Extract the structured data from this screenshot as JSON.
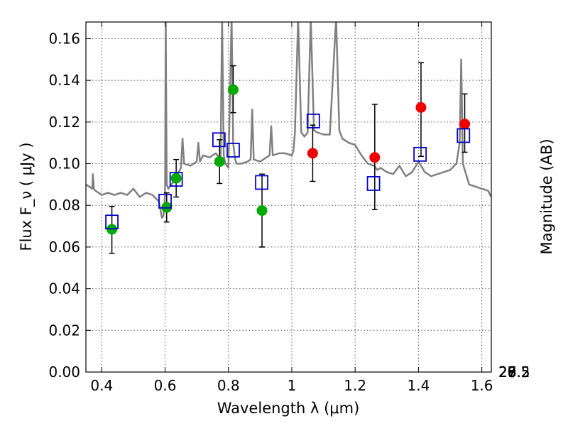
{
  "chart_data": {
    "type": "scatter",
    "xlabel": "Wavelength  λ (μm)",
    "ylabel": "Flux  F_ν  ( μJy )",
    "ylabel_right": "Magnitude (AB)",
    "xlim": [
      0.35,
      1.63
    ],
    "ylim": [
      0.0,
      0.168
    ],
    "grid": true,
    "x_ticks": [
      0.4,
      0.6,
      0.8,
      1.0,
      1.2,
      1.4,
      1.6
    ],
    "x_tick_labels": [
      "0.4",
      "0.6",
      "0.8",
      "1",
      "1.2",
      "1.4",
      "1.6"
    ],
    "y_ticks": [
      0.0,
      0.02,
      0.04,
      0.06,
      0.08,
      0.1,
      0.12,
      0.14,
      0.16
    ],
    "y_tick_labels": [
      "0.00",
      "0.02",
      "0.04",
      "0.06",
      "0.08",
      "0.10",
      "0.12",
      "0.14",
      "0.16"
    ],
    "right_ticks": [
      {
        "label": "26",
        "mag": 26.0
      },
      {
        "label": "26.2",
        "mag": 26.2
      },
      {
        "label": "26.5",
        "mag": 26.5
      },
      {
        "label": "27",
        "mag": 27.0
      },
      {
        "label": "27.5",
        "mag": 27.5
      },
      {
        "label": "28",
        "mag": 28.0
      },
      {
        "label": "29",
        "mag": 29.0
      }
    ],
    "series": [
      {
        "name": "",
        "kind": "line",
        "color": "#808080",
        "x": [
          0.35,
          0.36,
          0.37,
          0.372,
          0.375,
          0.38,
          0.39,
          0.4,
          0.42,
          0.44,
          0.46,
          0.48,
          0.5,
          0.52,
          0.54,
          0.56,
          0.58,
          0.59,
          0.595,
          0.6,
          0.602,
          0.605,
          0.61,
          0.62,
          0.63,
          0.64,
          0.65,
          0.655,
          0.66,
          0.68,
          0.7,
          0.705,
          0.71,
          0.72,
          0.74,
          0.76,
          0.77,
          0.775,
          0.78,
          0.785,
          0.79,
          0.8,
          0.81,
          0.815,
          0.82,
          0.825,
          0.83,
          0.84,
          0.86,
          0.87,
          0.875,
          0.88,
          0.9,
          0.92,
          0.93,
          0.935,
          0.94,
          0.96,
          0.98,
          1.0,
          1.005,
          1.01,
          1.02,
          1.03,
          1.04,
          1.05,
          1.06,
          1.07,
          1.08,
          1.1,
          1.12,
          1.14,
          1.15,
          1.16,
          1.18,
          1.2,
          1.22,
          1.24,
          1.26,
          1.27,
          1.28,
          1.3,
          1.32,
          1.34,
          1.36,
          1.38,
          1.4,
          1.42,
          1.44,
          1.46,
          1.48,
          1.5,
          1.52,
          1.53,
          1.535,
          1.54,
          1.56,
          1.58,
          1.6,
          1.62,
          1.63
        ],
        "y": [
          0.09,
          0.089,
          0.088,
          0.095,
          0.088,
          0.087,
          0.086,
          0.085,
          0.086,
          0.085,
          0.086,
          0.085,
          0.088,
          0.084,
          0.086,
          0.085,
          0.082,
          0.074,
          0.075,
          0.085,
          0.17,
          0.09,
          0.088,
          0.09,
          0.092,
          0.095,
          0.098,
          0.112,
          0.1,
          0.099,
          0.101,
          0.11,
          0.101,
          0.104,
          0.103,
          0.105,
          0.103,
          0.1,
          0.17,
          0.104,
          0.1,
          0.098,
          0.17,
          0.11,
          0.103,
          0.1,
          0.1,
          0.1,
          0.101,
          0.102,
          0.126,
          0.102,
          0.101,
          0.103,
          0.104,
          0.118,
          0.104,
          0.105,
          0.105,
          0.104,
          0.106,
          0.115,
          0.17,
          0.115,
          0.113,
          0.115,
          0.17,
          0.116,
          0.115,
          0.114,
          0.114,
          0.17,
          0.116,
          0.112,
          0.11,
          0.109,
          0.104,
          0.1,
          0.099,
          0.097,
          0.098,
          0.096,
          0.095,
          0.099,
          0.094,
          0.096,
          0.101,
          0.096,
          0.094,
          0.095,
          0.096,
          0.097,
          0.1,
          0.11,
          0.15,
          0.1,
          0.09,
          0.089,
          0.088,
          0.087,
          0.084
        ]
      },
      {
        "name": "",
        "kind": "errorbar",
        "color": "#000000",
        "x": [
          0.432,
          0.605,
          0.635,
          0.772,
          0.815,
          0.906,
          1.066,
          1.262,
          1.408,
          1.546
        ],
        "y": [
          0.0685,
          0.079,
          0.093,
          0.101,
          0.1355,
          0.0775,
          0.105,
          0.103,
          0.127,
          0.119
        ],
        "yerr_low": [
          0.057,
          0.072,
          0.084,
          0.0905,
          0.1245,
          0.06,
          0.0915,
          0.078,
          0.1035,
          0.1055
        ],
        "yerr_high": [
          0.0795,
          0.086,
          0.102,
          0.1115,
          0.147,
          0.095,
          0.1185,
          0.1285,
          0.1485,
          0.1335
        ]
      },
      {
        "name": "",
        "kind": "points",
        "marker": "circle",
        "color": "#00aa00",
        "x": [
          0.432,
          0.605,
          0.635,
          0.772,
          0.815,
          0.906
        ],
        "y": [
          0.0685,
          0.079,
          0.093,
          0.101,
          0.1355,
          0.0775
        ]
      },
      {
        "name": "",
        "kind": "points",
        "marker": "circle",
        "color": "#ee0000",
        "x": [
          1.066,
          1.262,
          1.408,
          1.546
        ],
        "y": [
          0.105,
          0.103,
          0.127,
          0.119
        ]
      },
      {
        "name": "",
        "kind": "points",
        "marker": "square-open",
        "color": "#0000cc",
        "x": [
          0.432,
          0.6,
          0.635,
          0.77,
          0.815,
          0.905,
          1.068,
          1.258,
          1.405,
          1.542
        ],
        "y": [
          0.072,
          0.082,
          0.0925,
          0.1115,
          0.1065,
          0.091,
          0.1205,
          0.0905,
          0.1045,
          0.1135
        ]
      }
    ]
  }
}
